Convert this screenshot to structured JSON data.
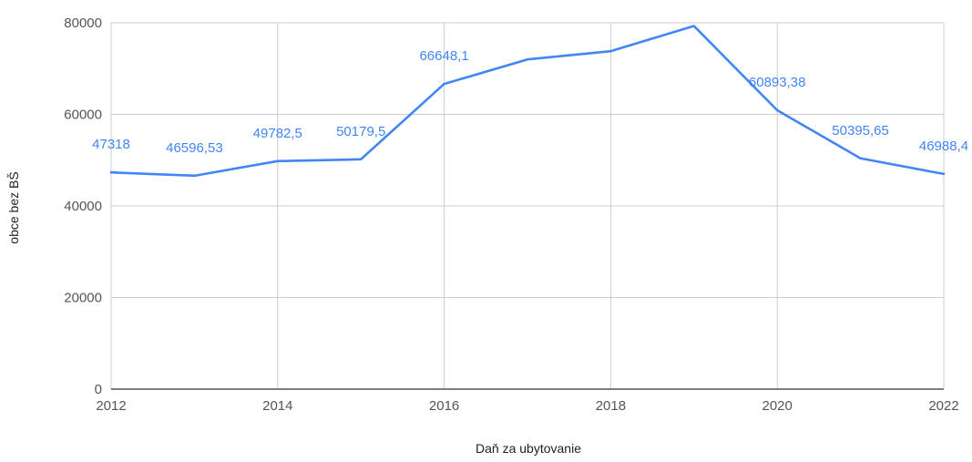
{
  "chart_data": {
    "type": "line",
    "title": "",
    "xlabel": "Daň za ubytovanie",
    "ylabel": "obce bez BŠ",
    "x": [
      2012,
      2013,
      2014,
      2015,
      2016,
      2017,
      2018,
      2019,
      2020,
      2021,
      2022
    ],
    "series": [
      {
        "values": [
          47318,
          46596.53,
          49782.5,
          50179.5,
          66648.1,
          72000,
          73800,
          79300,
          60893.38,
          50395.65,
          46988.4
        ],
        "labels": [
          "47318",
          "46596,53",
          "49782,5",
          "50179,5",
          "66648,1",
          "",
          "",
          "",
          "60893,38",
          "50395,65",
          "46988,4"
        ],
        "color": "#4285f4"
      }
    ],
    "xlim": [
      2012,
      2022
    ],
    "ylim": [
      0,
      80000
    ],
    "x_ticks": [
      2012,
      2014,
      2016,
      2018,
      2020,
      2022
    ],
    "y_ticks": [
      0,
      20000,
      40000,
      60000,
      80000
    ],
    "x_tick_labels": [
      "2012",
      "2014",
      "2016",
      "2018",
      "2020",
      "2022"
    ],
    "y_tick_labels": [
      "0",
      "20000",
      "40000",
      "60000",
      "80000"
    ],
    "grid": true,
    "legend": "none",
    "colors": {
      "line": "#4285f4",
      "label": "#4285f4",
      "grid": "#cccccc",
      "axis": "#333333"
    }
  }
}
